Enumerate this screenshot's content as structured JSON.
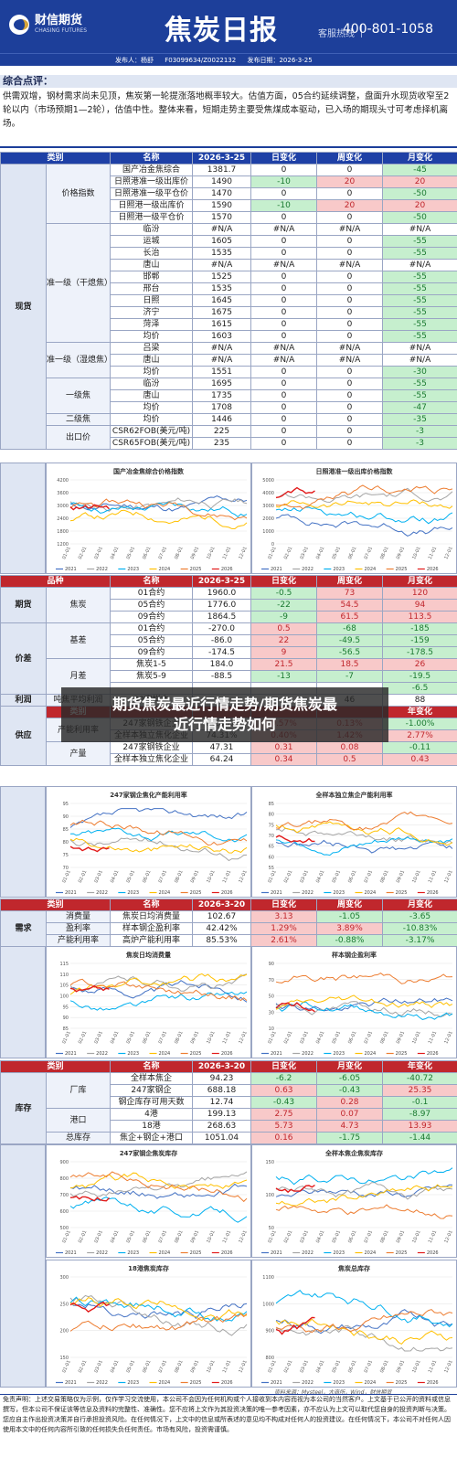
{
  "header": {
    "logo_cn": "财信期货",
    "logo_en": "CHASING FUTURES",
    "title": "焦炭日报",
    "hotline_label": "客服热线",
    "hotline": "400-801-1058"
  },
  "pub": {
    "publisher": "发布人：杨舒",
    "cert": "F03099634/Z0022132",
    "date": "发布日期：2026-3-25"
  },
  "summary": {
    "heading": "综合点评：",
    "text": "供需双增，钢材需求尚未见顶，焦炭第一轮提涨落地概率较大。估值方面，05合约延续调整，盘面升水现货收窄至2轮以内（市场预期1—2轮），估值中性。整体来看，短期走势主要受焦煤成本驱动，已入场的期现头寸可考虑择机离场。"
  },
  "spot": {
    "headers": [
      "类别",
      "名称",
      "2026-3-25",
      "日变化",
      "周变化",
      "月变化"
    ],
    "side": "现货",
    "rows": [
      {
        "g": "价格指数",
        "n": "国产冶金焦综合",
        "v": "1381.7",
        "d": "0",
        "w": "0",
        "m": "-45",
        "dc": "",
        "wc": "",
        "mc": "gt"
      },
      {
        "g": "",
        "n": "日照港准一级出库价",
        "v": "1490",
        "d": "-10",
        "w": "20",
        "m": "20",
        "dc": "gt",
        "wc": "rt",
        "mc": "rt"
      },
      {
        "g": "",
        "n": "日照港准一级平仓价",
        "v": "1470",
        "d": "0",
        "w": "0",
        "m": "-50",
        "dc": "",
        "wc": "",
        "mc": "gt"
      },
      {
        "g": "",
        "n": "日照港一级出库价",
        "v": "1590",
        "d": "-10",
        "w": "20",
        "m": "20",
        "dc": "gt",
        "wc": "rt",
        "mc": "rt"
      },
      {
        "g": "",
        "n": "日照港一级平仓价",
        "v": "1570",
        "d": "0",
        "w": "0",
        "m": "-50",
        "dc": "",
        "wc": "",
        "mc": "gt"
      },
      {
        "g": "准一级（干熄焦）",
        "n": "临汾",
        "v": "#N/A",
        "d": "#N/A",
        "w": "#N/A",
        "m": "#N/A",
        "dc": "",
        "wc": "",
        "mc": ""
      },
      {
        "g": "",
        "n": "运城",
        "v": "1605",
        "d": "0",
        "w": "0",
        "m": "-55",
        "dc": "",
        "wc": "",
        "mc": "gt"
      },
      {
        "g": "",
        "n": "长治",
        "v": "1535",
        "d": "0",
        "w": "0",
        "m": "-55",
        "dc": "",
        "wc": "",
        "mc": "gt"
      },
      {
        "g": "",
        "n": "唐山",
        "v": "#N/A",
        "d": "#N/A",
        "w": "#N/A",
        "m": "#N/A",
        "dc": "",
        "wc": "",
        "mc": ""
      },
      {
        "g": "",
        "n": "邯郸",
        "v": "1525",
        "d": "0",
        "w": "0",
        "m": "-55",
        "dc": "",
        "wc": "",
        "mc": "gt"
      },
      {
        "g": "",
        "n": "邢台",
        "v": "1535",
        "d": "0",
        "w": "0",
        "m": "-55",
        "dc": "",
        "wc": "",
        "mc": "gt"
      },
      {
        "g": "",
        "n": "日照",
        "v": "1645",
        "d": "0",
        "w": "0",
        "m": "-55",
        "dc": "",
        "wc": "",
        "mc": "gt"
      },
      {
        "g": "",
        "n": "济宁",
        "v": "1675",
        "d": "0",
        "w": "0",
        "m": "-55",
        "dc": "",
        "wc": "",
        "mc": "gt"
      },
      {
        "g": "",
        "n": "菏泽",
        "v": "1615",
        "d": "0",
        "w": "0",
        "m": "-55",
        "dc": "",
        "wc": "",
        "mc": "gt"
      },
      {
        "g": "",
        "n": "均价",
        "v": "1603",
        "d": "0",
        "w": "0",
        "m": "-55",
        "dc": "",
        "wc": "",
        "mc": "gt"
      },
      {
        "g": "准一级（湿熄焦）",
        "n": "吕梁",
        "v": "#N/A",
        "d": "#N/A",
        "w": "#N/A",
        "m": "#N/A",
        "dc": "",
        "wc": "",
        "mc": ""
      },
      {
        "g": "",
        "n": "唐山",
        "v": "#N/A",
        "d": "#N/A",
        "w": "#N/A",
        "m": "#N/A",
        "dc": "",
        "wc": "",
        "mc": ""
      },
      {
        "g": "",
        "n": "均价",
        "v": "1551",
        "d": "0",
        "w": "0",
        "m": "-30",
        "dc": "",
        "wc": "",
        "mc": "gt"
      },
      {
        "g": "一级焦",
        "n": "临汾",
        "v": "1695",
        "d": "0",
        "w": "0",
        "m": "-55",
        "dc": "",
        "wc": "",
        "mc": "gt"
      },
      {
        "g": "",
        "n": "唐山",
        "v": "1735",
        "d": "0",
        "w": "0",
        "m": "-55",
        "dc": "",
        "wc": "",
        "mc": "gt"
      },
      {
        "g": "",
        "n": "均价",
        "v": "1708",
        "d": "0",
        "w": "0",
        "m": "-47",
        "dc": "",
        "wc": "",
        "mc": "gt"
      },
      {
        "g": "二级焦",
        "n": "均价",
        "v": "1446",
        "d": "0",
        "w": "0",
        "m": "-35",
        "dc": "",
        "wc": "",
        "mc": "gt"
      },
      {
        "g": "出口价",
        "n": "CSR62FOB(美元/吨)",
        "v": "225",
        "d": "0",
        "w": "0",
        "m": "-3",
        "dc": "",
        "wc": "",
        "mc": "gt"
      },
      {
        "g": "",
        "n": "CSR65FOB(美元/吨)",
        "v": "235",
        "d": "0",
        "w": "0",
        "m": "-3",
        "dc": "",
        "wc": "",
        "mc": "gt"
      }
    ]
  },
  "charts1": [
    {
      "title": "国产冶金焦综合价格指数",
      "yticks": [
        "4200",
        "3600",
        "3000",
        "2400",
        "1800",
        "1200"
      ]
    },
    {
      "title": "日照港准一级出库价格指数",
      "yticks": [
        "5000",
        "4000",
        "3000",
        "2000",
        "1000",
        "0"
      ]
    }
  ],
  "futures": {
    "headers": [
      "品种",
      "名称",
      "2026-3-25",
      "日变化",
      "周变化",
      "月变化"
    ],
    "side": "期货",
    "group": "焦炭",
    "rows": [
      {
        "n": "01合约",
        "v": "1960.0",
        "d": "-0.5",
        "w": "73",
        "m": "120",
        "dc": "gt",
        "wc": "rt",
        "mc": "rt"
      },
      {
        "n": "05合约",
        "v": "1776.0",
        "d": "-22",
        "w": "54.5",
        "m": "94",
        "dc": "gt",
        "wc": "rt",
        "mc": "rt"
      },
      {
        "n": "09合约",
        "v": "1864.5",
        "d": "-9",
        "w": "61.5",
        "m": "113.5",
        "dc": "gt",
        "wc": "rt",
        "mc": "rt"
      }
    ]
  },
  "basis": {
    "side": "价差",
    "g1": "基差",
    "g2": "月差",
    "rows": [
      {
        "n": "01合约",
        "v": "-270.0",
        "d": "0.5",
        "w": "-68",
        "m": "-185",
        "dc": "rt",
        "wc": "gt",
        "mc": "gt"
      },
      {
        "n": "05合约",
        "v": "-86.0",
        "d": "22",
        "w": "-49.5",
        "m": "-159",
        "dc": "rt",
        "wc": "gt",
        "mc": "gt"
      },
      {
        "n": "09合约",
        "v": "-174.5",
        "d": "9",
        "w": "-56.5",
        "m": "-178.5",
        "dc": "rt",
        "wc": "gt",
        "mc": "gt"
      },
      {
        "n": "焦炭1-5",
        "v": "184.0",
        "d": "21.5",
        "w": "18.5",
        "m": "26",
        "dc": "rt",
        "wc": "rt",
        "mc": "rt"
      },
      {
        "n": "焦炭5-9",
        "v": "-88.5",
        "d": "-13",
        "w": "-7",
        "m": "-19.5",
        "dc": "gt",
        "wc": "gt",
        "mc": "gt"
      },
      {
        "n": "",
        "v": "",
        "d": "",
        "w": "",
        "m": "-6.5",
        "dc": "",
        "wc": "",
        "mc": "gt"
      }
    ]
  },
  "profit": {
    "side": "利润",
    "label": "吨焦平均利润",
    "name": "30家样本",
    "v": "",
    "d": "",
    "w": "46",
    "m": "88",
    "header_cat": "类别",
    "header_m": "年变化"
  },
  "supply": {
    "side": "供应",
    "rows": [
      {
        "g": "产能利用率",
        "n": "247家钢铁企业",
        "v": "86.46%",
        "d": "0.57%",
        "w": "0.13%",
        "m": "-1.00%",
        "dc": "rt",
        "wc": "rt",
        "mc": "gt"
      },
      {
        "g": "",
        "n": "全样本独立焦化企业",
        "v": "74.31%",
        "d": "0.40%",
        "w": "1.42%",
        "m": "2.77%",
        "dc": "rt",
        "wc": "rt",
        "mc": "rt"
      },
      {
        "g": "产量",
        "n": "247家钢铁企业",
        "v": "47.31",
        "d": "0.31",
        "w": "0.08",
        "m": "-0.11",
        "dc": "rt",
        "wc": "rt",
        "mc": "gt"
      },
      {
        "g": "",
        "n": "全样本独立焦化企业",
        "v": "64.24",
        "d": "0.34",
        "w": "0.5",
        "m": "0.43",
        "dc": "rt",
        "wc": "rt",
        "mc": "rt"
      }
    ]
  },
  "charts2": [
    {
      "title": "247家钢企焦化产能利用率",
      "yticks": [
        "95",
        "90",
        "85",
        "80",
        "75",
        "70"
      ]
    },
    {
      "title": "全样本独立焦企产能利用率",
      "yticks": [
        "85",
        "80",
        "75",
        "70",
        "65",
        "60",
        "55"
      ]
    }
  ],
  "demand": {
    "headers": [
      "类别",
      "名称",
      "2026-3-20",
      "日变化",
      "周变化",
      "月变化"
    ],
    "side": "需求",
    "rows": [
      {
        "g": "消费量",
        "n": "焦炭日均消费量",
        "v": "102.67",
        "d": "3.13",
        "w": "-1.05",
        "m": "-3.65",
        "dc": "rt",
        "wc": "gt",
        "mc": "gt"
      },
      {
        "g": "盈利率",
        "n": "样本钢企盈利率",
        "v": "42.42%",
        "d": "1.29%",
        "w": "3.89%",
        "m": "-10.83%",
        "dc": "rt",
        "wc": "rt",
        "mc": "gt"
      },
      {
        "g": "产能利用率",
        "n": "高炉产能利用率",
        "v": "85.53%",
        "d": "2.61%",
        "w": "-0.88%",
        "m": "-3.17%",
        "dc": "rt",
        "wc": "gt",
        "mc": "gt"
      }
    ]
  },
  "charts3": [
    {
      "title": "焦炭日均消费量",
      "yticks": [
        "115",
        "110",
        "105",
        "100",
        "95",
        "90",
        "85"
      ]
    },
    {
      "title": "样本钢企盈利率",
      "yticks": [
        "90",
        "70",
        "50",
        "30",
        "10"
      ]
    }
  ],
  "inventory": {
    "headers": [
      "类别",
      "名称",
      "2026-3-20",
      "日变化",
      "月变化",
      "年变化"
    ],
    "side": "库存",
    "rows": [
      {
        "g": "厂库",
        "n": "全样本焦企",
        "v": "94.23",
        "d": "-6.2",
        "w": "-6.05",
        "m": "-40.72",
        "dc": "gt",
        "wc": "gt",
        "mc": "gt"
      },
      {
        "g": "",
        "n": "247家钢企",
        "v": "688.18",
        "d": "0.63",
        "w": "-0.43",
        "m": "25.35",
        "dc": "rt",
        "wc": "gt",
        "mc": "rt"
      },
      {
        "g": "",
        "n": "钢企库存可用天数",
        "v": "12.74",
        "d": "-0.43",
        "w": "0.28",
        "m": "-0.1",
        "dc": "gt",
        "wc": "rt",
        "mc": "gt"
      },
      {
        "g": "港口",
        "n": "4港",
        "v": "199.13",
        "d": "2.75",
        "w": "0.07",
        "m": "-8.97",
        "dc": "rt",
        "wc": "rt",
        "mc": "gt"
      },
      {
        "g": "",
        "n": "18港",
        "v": "268.63",
        "d": "5.73",
        "w": "4.73",
        "m": "13.93",
        "dc": "rt",
        "wc": "rt",
        "mc": "rt"
      },
      {
        "g": "总库存",
        "n": "焦企+钢企+港口",
        "v": "1051.04",
        "d": "0.16",
        "w": "-1.75",
        "m": "-1.44",
        "dc": "rt",
        "wc": "gt",
        "mc": "gt"
      }
    ]
  },
  "charts4": [
    {
      "title": "247家钢企焦炭库存",
      "yticks": [
        "900",
        "800",
        "700",
        "600",
        "500"
      ]
    },
    {
      "title": "全样本焦企焦炭库存",
      "yticks": [
        "150",
        "100",
        "50"
      ]
    },
    {
      "title": "18港焦炭库存",
      "yticks": [
        "300",
        "250",
        "200",
        "150"
      ]
    },
    {
      "title": "焦炭总库存",
      "yticks": [
        "1100",
        "1000",
        "900",
        "800"
      ]
    }
  ],
  "legend_years": [
    "2021",
    "2022",
    "2023",
    "2024",
    "2025",
    "2026"
  ],
  "xticks": [
    "01-01",
    "02-01",
    "03-01",
    "04-01",
    "05-01",
    "06-01",
    "07-01",
    "08-01",
    "09-01",
    "10-01",
    "11-01",
    "12-01"
  ],
  "overlay": {
    "line1": "期货焦炭最近行情走势/期货焦炭最",
    "line2": "近行情走势如何"
  },
  "source": "资料来源：Mysteel，大商所，Wind，财信期货",
  "disclaimer": "免责声明：上述交易策略仅为示例，仅作学习交流使用，本公司不会因为任何机构或个人接收到本内容而视为本公司的当然客户。上文基于已公开的资料或信息撰写，但本公司不保证该等信息及资料的完整性、准确性。您不应将上文作为其投资决策的唯一参考因素，亦不应认为上文可以取代您自身的投资判断与决策。您应自主作出投资决策并自行承担投资风险。在任何情况下，上文中的信息或所表述的意见均不构成对任何人的投资建议。在任何情况下，本公司不对任何人因使用本文中的任何内容所引致的任何损失负任何责任。市场有风险，投资需谨慎。",
  "colors": {
    "navy": "#1d3f9a",
    "red": "#c0272d",
    "green_fill": "#c6efce",
    "red_fill": "#f8c9c9",
    "y2021": "#4472c4",
    "y2022": "#a5a5a5",
    "y2023": "#00b0f0",
    "y2024": "#ffc000",
    "y2025": "#ed7d31",
    "y2026": "#e21a1a"
  }
}
